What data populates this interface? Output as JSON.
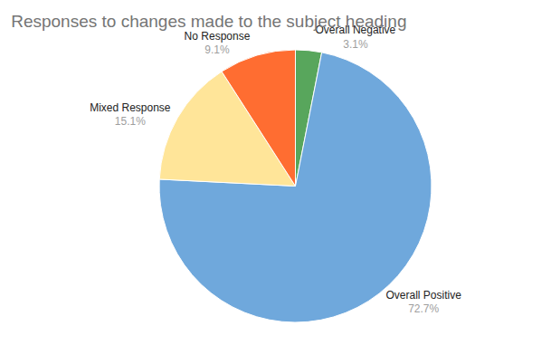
{
  "chart_data": {
    "type": "pie",
    "title": "Responses to changes made to the subject heading",
    "categories": [
      "Overall Negative",
      "Overall Positive",
      "Mixed Response",
      "No Response"
    ],
    "values": [
      3.1,
      72.7,
      15.1,
      9.1
    ],
    "value_labels": [
      "3.1%",
      "72.7%",
      "15.1%",
      "9.1%"
    ],
    "colors": [
      "#58a65c",
      "#6fa8dc",
      "#ffe599",
      "#ff6d31"
    ],
    "data_labels": true
  }
}
